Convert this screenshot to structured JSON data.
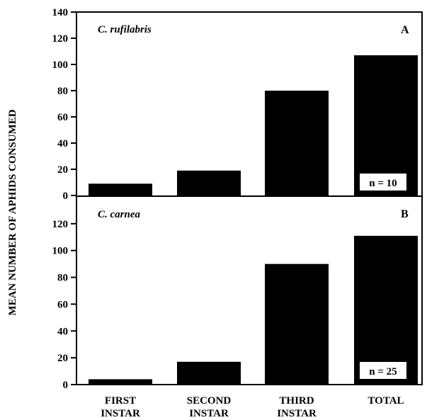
{
  "ylabel": "MEAN NUMBER OF APHIDS CONSUMED",
  "x_labels": [
    [
      "FIRST",
      "INSTAR"
    ],
    [
      "SECOND",
      "INSTAR"
    ],
    [
      "THIRD",
      "INSTAR"
    ],
    [
      "TOTAL"
    ]
  ],
  "chart_data": [
    {
      "type": "bar",
      "species": "C. rufilabris",
      "panel_letter": "A",
      "n_label": "n = 10",
      "categories": [
        "FIRST INSTAR",
        "SECOND INSTAR",
        "THIRD INSTAR",
        "TOTAL"
      ],
      "values": [
        9,
        19,
        80,
        107
      ],
      "ylim": [
        0,
        140
      ],
      "yticks": [
        0,
        20,
        40,
        60,
        80,
        100,
        120,
        140
      ],
      "ylabel": "MEAN NUMBER OF APHIDS CONSUMED",
      "grid": false
    },
    {
      "type": "bar",
      "species": "C. carnea",
      "panel_letter": "B",
      "n_label": "n = 25",
      "categories": [
        "FIRST INSTAR",
        "SECOND INSTAR",
        "THIRD INSTAR",
        "TOTAL"
      ],
      "values": [
        4,
        17,
        90,
        111
      ],
      "ylim": [
        0,
        140
      ],
      "yticks": [
        0,
        20,
        40,
        60,
        80,
        100,
        120
      ],
      "ylabel": "MEAN NUMBER OF APHIDS CONSUMED",
      "grid": false
    }
  ],
  "colors": {
    "bar": "#000000",
    "axis": "#000000",
    "background": "#ffffff"
  }
}
